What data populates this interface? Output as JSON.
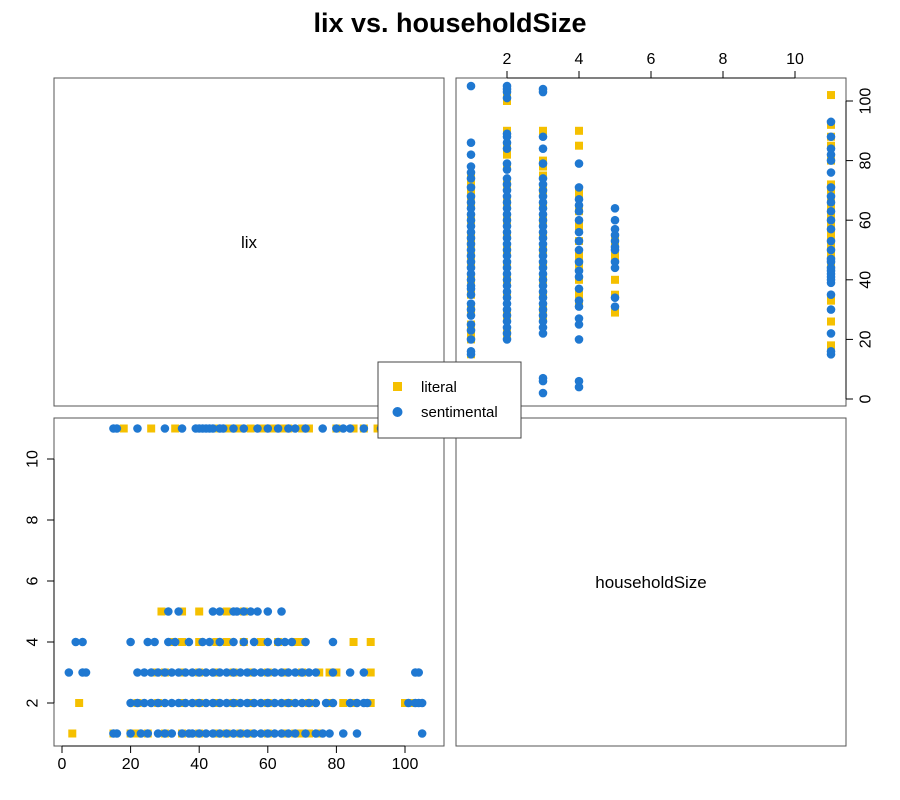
{
  "chart_data": {
    "type": "scatter",
    "title": "lix vs. householdSize",
    "variables": [
      "lix",
      "householdSize"
    ],
    "colors": {
      "literal": "#F5C000",
      "sentimental": "#1F78D1"
    },
    "legend": {
      "position": "center",
      "entries": [
        {
          "name": "literal",
          "marker": "square"
        },
        {
          "name": "sentimental",
          "marker": "circle"
        }
      ]
    },
    "axes": {
      "lix": {
        "range": [
          0,
          105
        ],
        "ticks": [
          0,
          20,
          40,
          60,
          80,
          100
        ]
      },
      "householdSize": {
        "range": [
          1,
          11
        ],
        "ticks": [
          2,
          4,
          6,
          8,
          10
        ]
      }
    },
    "series": [
      {
        "name": "literal",
        "points": [
          [
            70,
            1
          ],
          [
            72,
            1
          ],
          [
            75,
            1
          ],
          [
            68,
            1
          ],
          [
            65,
            1
          ],
          [
            60,
            1
          ],
          [
            55,
            1
          ],
          [
            52,
            1
          ],
          [
            48,
            1
          ],
          [
            45,
            1
          ],
          [
            40,
            1
          ],
          [
            35,
            1
          ],
          [
            30,
            1
          ],
          [
            25,
            1
          ],
          [
            22,
            1
          ],
          [
            20,
            1
          ],
          [
            15,
            1
          ],
          [
            3,
            1
          ],
          [
            85,
            2
          ],
          [
            82,
            2
          ],
          [
            90,
            2
          ],
          [
            100,
            2
          ],
          [
            102,
            2
          ],
          [
            5,
            2
          ],
          [
            78,
            2
          ],
          [
            72,
            2
          ],
          [
            66,
            2
          ],
          [
            60,
            2
          ],
          [
            55,
            2
          ],
          [
            50,
            2
          ],
          [
            45,
            2
          ],
          [
            40,
            2
          ],
          [
            35,
            2
          ],
          [
            28,
            2
          ],
          [
            22,
            2
          ],
          [
            90,
            3
          ],
          [
            80,
            3
          ],
          [
            78,
            3
          ],
          [
            75,
            3
          ],
          [
            70,
            3
          ],
          [
            65,
            3
          ],
          [
            60,
            3
          ],
          [
            55,
            3
          ],
          [
            50,
            3
          ],
          [
            45,
            3
          ],
          [
            40,
            3
          ],
          [
            35,
            3
          ],
          [
            30,
            3
          ],
          [
            27,
            3
          ],
          [
            90,
            4
          ],
          [
            85,
            4
          ],
          [
            70,
            4
          ],
          [
            68,
            4
          ],
          [
            63,
            4
          ],
          [
            58,
            4
          ],
          [
            53,
            4
          ],
          [
            48,
            4
          ],
          [
            45,
            4
          ],
          [
            40,
            4
          ],
          [
            35,
            4
          ],
          [
            32,
            4
          ],
          [
            53,
            5
          ],
          [
            48,
            5
          ],
          [
            40,
            5
          ],
          [
            35,
            5
          ],
          [
            29,
            5
          ],
          [
            18,
            11
          ],
          [
            26,
            11
          ],
          [
            33,
            11
          ],
          [
            45,
            11
          ],
          [
            48,
            11
          ],
          [
            50,
            11
          ],
          [
            52,
            11
          ],
          [
            55,
            11
          ],
          [
            58,
            11
          ],
          [
            60,
            11
          ],
          [
            62,
            11
          ],
          [
            64,
            11
          ],
          [
            66,
            11
          ],
          [
            70,
            11
          ],
          [
            72,
            11
          ],
          [
            80,
            11
          ],
          [
            85,
            11
          ],
          [
            88,
            11
          ],
          [
            92,
            11
          ],
          [
            102,
            11
          ]
        ]
      },
      {
        "name": "sentimental",
        "points": [
          [
            23,
            1
          ],
          [
            25,
            1
          ],
          [
            28,
            1
          ],
          [
            30,
            1
          ],
          [
            32,
            1
          ],
          [
            35,
            1
          ],
          [
            37,
            1
          ],
          [
            38,
            1
          ],
          [
            40,
            1
          ],
          [
            42,
            1
          ],
          [
            44,
            1
          ],
          [
            46,
            1
          ],
          [
            48,
            1
          ],
          [
            50,
            1
          ],
          [
            52,
            1
          ],
          [
            54,
            1
          ],
          [
            56,
            1
          ],
          [
            58,
            1
          ],
          [
            60,
            1
          ],
          [
            62,
            1
          ],
          [
            64,
            1
          ],
          [
            66,
            1
          ],
          [
            68,
            1
          ],
          [
            71,
            1
          ],
          [
            74,
            1
          ],
          [
            76,
            1
          ],
          [
            78,
            1
          ],
          [
            82,
            1
          ],
          [
            86,
            1
          ],
          [
            105,
            1
          ],
          [
            20,
            1
          ],
          [
            16,
            1
          ],
          [
            15,
            1
          ],
          [
            20,
            2
          ],
          [
            22,
            2
          ],
          [
            24,
            2
          ],
          [
            26,
            2
          ],
          [
            28,
            2
          ],
          [
            30,
            2
          ],
          [
            32,
            2
          ],
          [
            34,
            2
          ],
          [
            36,
            2
          ],
          [
            38,
            2
          ],
          [
            40,
            2
          ],
          [
            42,
            2
          ],
          [
            44,
            2
          ],
          [
            46,
            2
          ],
          [
            48,
            2
          ],
          [
            50,
            2
          ],
          [
            52,
            2
          ],
          [
            54,
            2
          ],
          [
            56,
            2
          ],
          [
            58,
            2
          ],
          [
            60,
            2
          ],
          [
            62,
            2
          ],
          [
            64,
            2
          ],
          [
            66,
            2
          ],
          [
            68,
            2
          ],
          [
            70,
            2
          ],
          [
            72,
            2
          ],
          [
            74,
            2
          ],
          [
            77,
            2
          ],
          [
            79,
            2
          ],
          [
            84,
            2
          ],
          [
            86,
            2
          ],
          [
            88,
            2
          ],
          [
            89,
            2
          ],
          [
            101,
            2
          ],
          [
            103,
            2
          ],
          [
            104,
            2
          ],
          [
            105,
            2
          ],
          [
            2,
            3
          ],
          [
            6,
            3
          ],
          [
            7,
            3
          ],
          [
            22,
            3
          ],
          [
            24,
            3
          ],
          [
            26,
            3
          ],
          [
            28,
            3
          ],
          [
            30,
            3
          ],
          [
            32,
            3
          ],
          [
            34,
            3
          ],
          [
            36,
            3
          ],
          [
            38,
            3
          ],
          [
            40,
            3
          ],
          [
            42,
            3
          ],
          [
            44,
            3
          ],
          [
            46,
            3
          ],
          [
            48,
            3
          ],
          [
            50,
            3
          ],
          [
            52,
            3
          ],
          [
            54,
            3
          ],
          [
            56,
            3
          ],
          [
            58,
            3
          ],
          [
            60,
            3
          ],
          [
            62,
            3
          ],
          [
            64,
            3
          ],
          [
            66,
            3
          ],
          [
            68,
            3
          ],
          [
            70,
            3
          ],
          [
            72,
            3
          ],
          [
            74,
            3
          ],
          [
            79,
            3
          ],
          [
            84,
            3
          ],
          [
            88,
            3
          ],
          [
            103,
            3
          ],
          [
            104,
            3
          ],
          [
            4,
            4
          ],
          [
            6,
            4
          ],
          [
            20,
            4
          ],
          [
            25,
            4
          ],
          [
            27,
            4
          ],
          [
            31,
            4
          ],
          [
            33,
            4
          ],
          [
            37,
            4
          ],
          [
            41,
            4
          ],
          [
            43,
            4
          ],
          [
            46,
            4
          ],
          [
            50,
            4
          ],
          [
            53,
            4
          ],
          [
            56,
            4
          ],
          [
            60,
            4
          ],
          [
            63,
            4
          ],
          [
            65,
            4
          ],
          [
            67,
            4
          ],
          [
            71,
            4
          ],
          [
            79,
            4
          ],
          [
            31,
            5
          ],
          [
            34,
            5
          ],
          [
            44,
            5
          ],
          [
            46,
            5
          ],
          [
            50,
            5
          ],
          [
            51,
            5
          ],
          [
            53,
            5
          ],
          [
            55,
            5
          ],
          [
            57,
            5
          ],
          [
            60,
            5
          ],
          [
            64,
            5
          ],
          [
            15,
            11
          ],
          [
            16,
            11
          ],
          [
            22,
            11
          ],
          [
            30,
            11
          ],
          [
            35,
            11
          ],
          [
            39,
            11
          ],
          [
            40,
            11
          ],
          [
            41,
            11
          ],
          [
            42,
            11
          ],
          [
            43,
            11
          ],
          [
            44,
            11
          ],
          [
            46,
            11
          ],
          [
            47,
            11
          ],
          [
            50,
            11
          ],
          [
            53,
            11
          ],
          [
            57,
            11
          ],
          [
            60,
            11
          ],
          [
            63,
            11
          ],
          [
            66,
            11
          ],
          [
            68,
            11
          ],
          [
            71,
            11
          ],
          [
            76,
            11
          ],
          [
            80,
            11
          ],
          [
            82,
            11
          ],
          [
            84,
            11
          ],
          [
            88,
            11
          ],
          [
            93,
            11
          ]
        ]
      }
    ]
  }
}
